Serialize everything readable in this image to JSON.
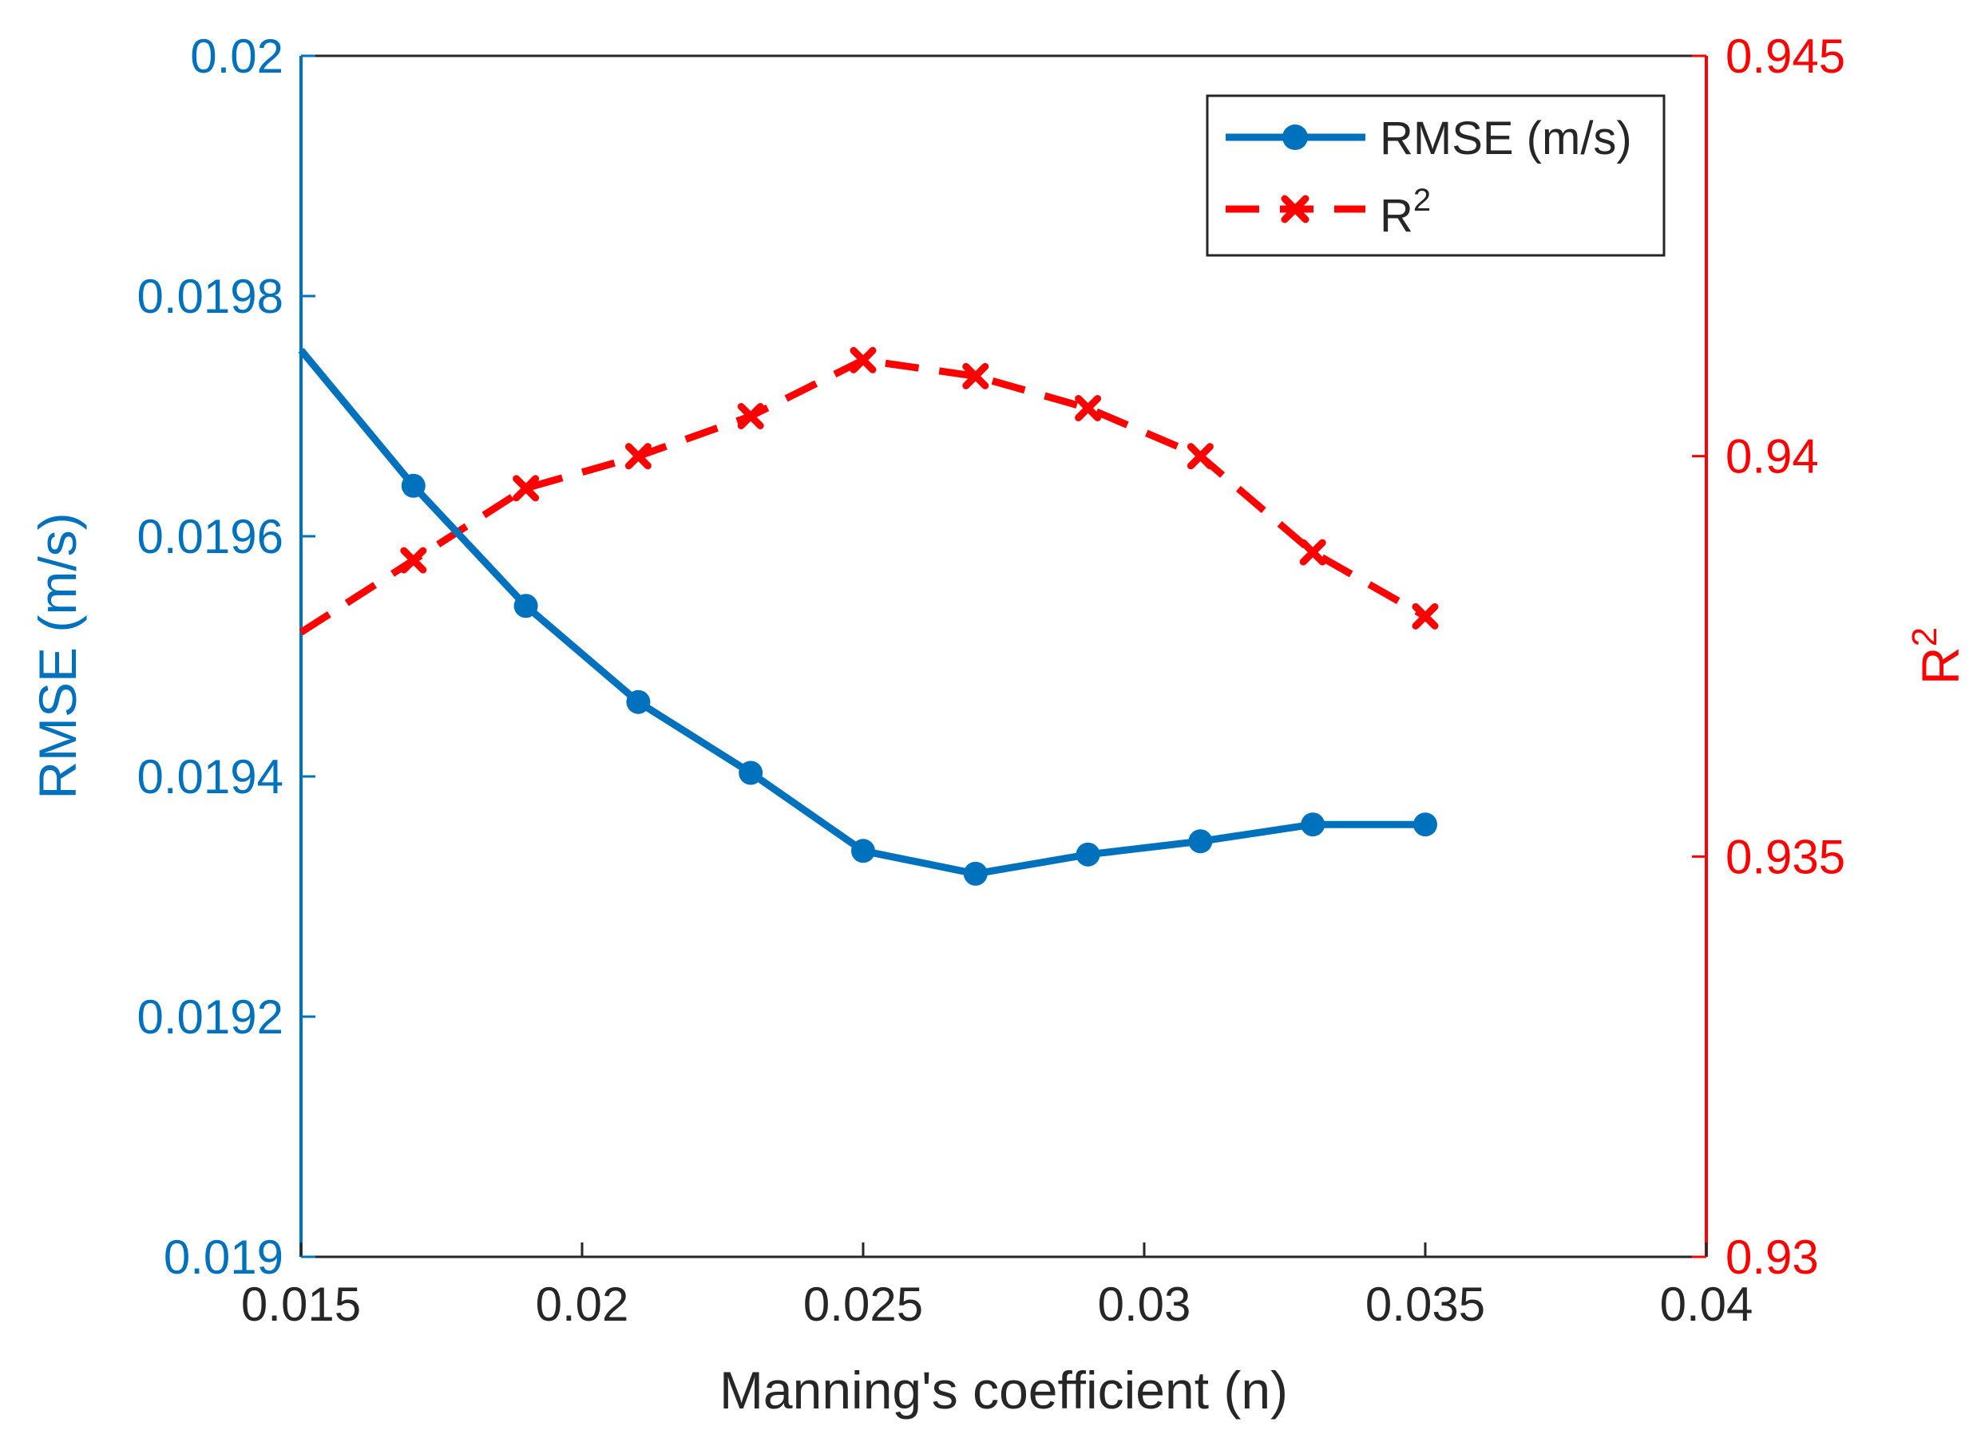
{
  "colors": {
    "left_axis": "#0072BD",
    "right_axis": "#FF0000",
    "bottom_axis": "#262626",
    "background": "#FFFFFF"
  },
  "chart_data": {
    "type": "line",
    "title": "",
    "xlabel": "Manning's coefficient (n)",
    "ylabel_left": "RMSE (m/s)",
    "ylabel_right": "R²",
    "ylabel_right_base": "R",
    "ylabel_right_sup": "2",
    "xlim": [
      0.015,
      0.04
    ],
    "ylim_left": [
      0.019,
      0.02
    ],
    "ylim_right": [
      0.93,
      0.945
    ],
    "x_ticks": [
      "0.015",
      "0.02",
      "0.025",
      "0.03",
      "0.035",
      "0.04"
    ],
    "y_left_ticks": [
      "0.019",
      "0.0192",
      "0.0194",
      "0.0196",
      "0.0198",
      "0.02"
    ],
    "y_right_ticks": [
      "0.93",
      "0.935",
      "0.94",
      "0.945"
    ],
    "grid": false,
    "legend_position": "top-right",
    "x": [
      0.015,
      0.017,
      0.019,
      0.021,
      0.023,
      0.025,
      0.027,
      0.029,
      0.031,
      0.033,
      0.035
    ],
    "series": [
      {
        "name": "RMSE (m/s)",
        "axis": "left",
        "color": "#0072BD",
        "style": "solid",
        "marker": "circle",
        "values": [
          0.019755,
          0.019642,
          0.019542,
          0.019462,
          0.019403,
          0.019338,
          0.019319,
          0.019335,
          0.019346,
          0.01936,
          0.01936
        ]
      },
      {
        "name": "R²",
        "legend_base": "R",
        "legend_sup": "2",
        "axis": "right",
        "color": "#FF0000",
        "style": "dashed",
        "marker": "x",
        "values": [
          0.9378,
          0.9387,
          0.9396,
          0.94,
          0.9405,
          0.9412,
          0.941,
          0.9406,
          0.94,
          0.9388,
          0.938
        ]
      }
    ]
  }
}
